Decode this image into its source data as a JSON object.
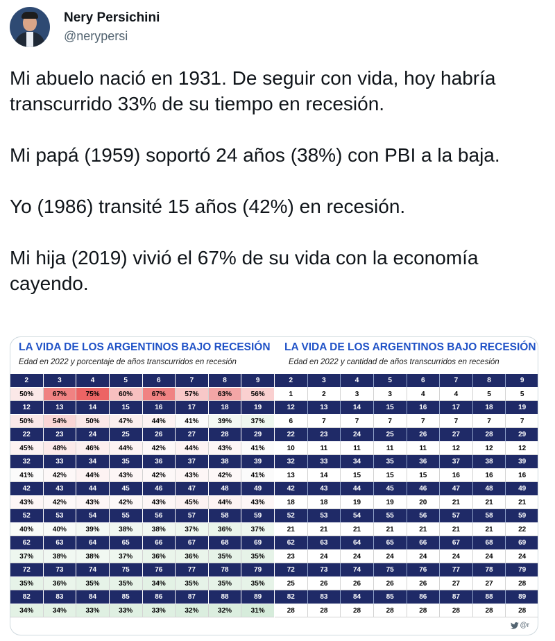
{
  "author": {
    "name": "Nery Persichini",
    "handle": "@nerypersi"
  },
  "tweet": {
    "paragraphs": [
      "Mi abuelo nació en 1931. De seguir con vida, hoy habría transcurrido 33% de su tiempo en recesión.",
      "Mi papá (1959) soportó 24 años (38%) con PBI a la baja.",
      "Yo (1986) transité 15 años (42%) en recesión.",
      "Mi hija (2019) vivió el 67% de su vida con la economía cayendo."
    ]
  },
  "image": {
    "left_table": {
      "title": "LA VIDA DE LOS ARGENTINOS BAJO RECESIÓN",
      "subtitle": "Edad en 2022 y porcentaje de años transcurridos en recesión",
      "rows": [
        {
          "ages": [
            "2",
            "3",
            "4",
            "5",
            "6",
            "7",
            "8",
            "9"
          ],
          "values": [
            "50%",
            "67%",
            "75%",
            "60%",
            "67%",
            "57%",
            "63%",
            "56%"
          ],
          "colors": [
            "#fbe8e8",
            "#f08282",
            "#ec6464",
            "#f7c0c0",
            "#f08282",
            "#f8c8c8",
            "#f3a6a6",
            "#fad0d0"
          ]
        },
        {
          "ages": [
            "12",
            "13",
            "14",
            "15",
            "16",
            "17",
            "18",
            "19"
          ],
          "values": [
            "50%",
            "54%",
            "50%",
            "47%",
            "44%",
            "41%",
            "39%",
            "37%"
          ],
          "colors": [
            "#fbe8e8",
            "#fad6d6",
            "#fbe8e8",
            "#fcefef",
            "#fdf3f3",
            "#fbfbfb",
            "#f4f9f4",
            "#eef7ef"
          ]
        },
        {
          "ages": [
            "22",
            "23",
            "24",
            "25",
            "26",
            "27",
            "28",
            "29"
          ],
          "values": [
            "45%",
            "48%",
            "46%",
            "44%",
            "42%",
            "44%",
            "43%",
            "41%"
          ],
          "colors": [
            "#fcf2f2",
            "#fceaea",
            "#fcefef",
            "#fdf3f3",
            "#fdf8f8",
            "#fdf3f3",
            "#fdf6f6",
            "#fbfbfb"
          ]
        },
        {
          "ages": [
            "32",
            "33",
            "34",
            "35",
            "36",
            "37",
            "38",
            "39"
          ],
          "values": [
            "41%",
            "42%",
            "44%",
            "43%",
            "42%",
            "43%",
            "42%",
            "41%"
          ],
          "colors": [
            "#fbfbfb",
            "#fdf8f8",
            "#fdf3f3",
            "#fdf6f6",
            "#fdf8f8",
            "#fdf6f6",
            "#fdf8f8",
            "#fbfbfb"
          ]
        },
        {
          "ages": [
            "42",
            "43",
            "44",
            "45",
            "46",
            "47",
            "48",
            "49"
          ],
          "values": [
            "43%",
            "42%",
            "43%",
            "42%",
            "43%",
            "45%",
            "44%",
            "43%"
          ],
          "colors": [
            "#fdf6f6",
            "#fdf8f8",
            "#fdf6f6",
            "#fdf8f8",
            "#fdf6f6",
            "#fcf2f2",
            "#fdf3f3",
            "#fdf6f6"
          ]
        },
        {
          "ages": [
            "52",
            "53",
            "54",
            "55",
            "56",
            "57",
            "58",
            "59"
          ],
          "values": [
            "40%",
            "40%",
            "39%",
            "38%",
            "38%",
            "37%",
            "36%",
            "37%"
          ],
          "colors": [
            "#f8fbf8",
            "#f8fbf8",
            "#f4f9f4",
            "#f1f8f2",
            "#f1f8f2",
            "#eef7ef",
            "#eaf5eb",
            "#eef7ef"
          ]
        },
        {
          "ages": [
            "62",
            "63",
            "64",
            "65",
            "66",
            "67",
            "68",
            "69"
          ],
          "values": [
            "37%",
            "38%",
            "38%",
            "37%",
            "36%",
            "36%",
            "35%",
            "35%"
          ],
          "colors": [
            "#eef7ef",
            "#f1f8f2",
            "#f1f8f2",
            "#eef7ef",
            "#eaf5eb",
            "#eaf5eb",
            "#e6f3e8",
            "#e6f3e8"
          ]
        },
        {
          "ages": [
            "72",
            "73",
            "74",
            "75",
            "76",
            "77",
            "78",
            "79"
          ],
          "values": [
            "35%",
            "36%",
            "35%",
            "35%",
            "34%",
            "35%",
            "35%",
            "35%"
          ],
          "colors": [
            "#e6f3e8",
            "#eaf5eb",
            "#e6f3e8",
            "#e6f3e8",
            "#e3f2e5",
            "#e6f3e8",
            "#e6f3e8",
            "#e6f3e8"
          ]
        },
        {
          "ages": [
            "82",
            "83",
            "84",
            "85",
            "86",
            "87",
            "88",
            "89"
          ],
          "values": [
            "34%",
            "34%",
            "33%",
            "33%",
            "33%",
            "32%",
            "32%",
            "31%"
          ],
          "colors": [
            "#e3f2e5",
            "#e3f2e5",
            "#dff0e2",
            "#dff0e2",
            "#dff0e2",
            "#dbeedf",
            "#dbeedf",
            "#d6ecdb"
          ]
        }
      ]
    },
    "right_table": {
      "title": "LA VIDA DE LOS ARGENTINOS BAJO RECESIÓN",
      "subtitle": "Edad en 2022 y cantidad de años transcurridos en recesión",
      "rows": [
        {
          "ages": [
            "2",
            "3",
            "4",
            "5",
            "6",
            "7",
            "8",
            "9"
          ],
          "values": [
            "1",
            "2",
            "3",
            "3",
            "4",
            "4",
            "5",
            "5"
          ]
        },
        {
          "ages": [
            "12",
            "13",
            "14",
            "15",
            "16",
            "17",
            "18",
            "19"
          ],
          "values": [
            "6",
            "7",
            "7",
            "7",
            "7",
            "7",
            "7",
            "7"
          ]
        },
        {
          "ages": [
            "22",
            "23",
            "24",
            "25",
            "26",
            "27",
            "28",
            "29"
          ],
          "values": [
            "10",
            "11",
            "11",
            "11",
            "11",
            "12",
            "12",
            "12"
          ]
        },
        {
          "ages": [
            "32",
            "33",
            "34",
            "35",
            "36",
            "37",
            "38",
            "39"
          ],
          "values": [
            "13",
            "14",
            "15",
            "15",
            "15",
            "16",
            "16",
            "16"
          ]
        },
        {
          "ages": [
            "42",
            "43",
            "44",
            "45",
            "46",
            "47",
            "48",
            "49"
          ],
          "values": [
            "18",
            "18",
            "19",
            "19",
            "20",
            "21",
            "21",
            "21"
          ]
        },
        {
          "ages": [
            "52",
            "53",
            "54",
            "55",
            "56",
            "57",
            "58",
            "59"
          ],
          "values": [
            "21",
            "21",
            "21",
            "21",
            "21",
            "21",
            "21",
            "22"
          ]
        },
        {
          "ages": [
            "62",
            "63",
            "64",
            "65",
            "66",
            "67",
            "68",
            "69"
          ],
          "values": [
            "23",
            "24",
            "24",
            "24",
            "24",
            "24",
            "24",
            "24"
          ]
        },
        {
          "ages": [
            "72",
            "73",
            "74",
            "75",
            "76",
            "77",
            "78",
            "79"
          ],
          "values": [
            "25",
            "26",
            "26",
            "26",
            "26",
            "27",
            "27",
            "28"
          ]
        },
        {
          "ages": [
            "82",
            "83",
            "84",
            "85",
            "86",
            "87",
            "88",
            "89"
          ],
          "values": [
            "28",
            "28",
            "28",
            "28",
            "28",
            "28",
            "28",
            "28"
          ]
        }
      ]
    },
    "watermark_text": "@r",
    "header_color": "#1f2a67",
    "title_color": "#2153c7"
  }
}
